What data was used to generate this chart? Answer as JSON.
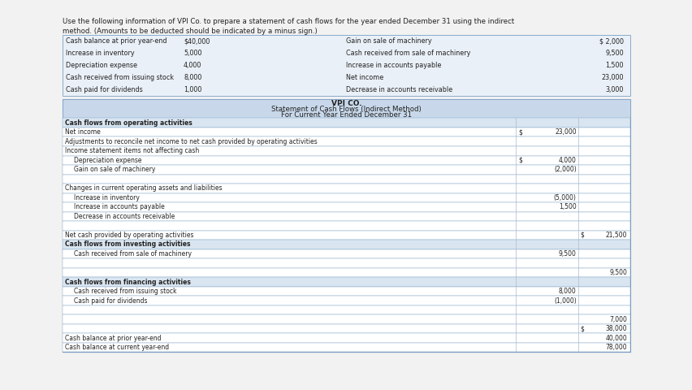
{
  "title1": "VPI CO.",
  "title2": "Statement of Cash Flows (Indirect Method)",
  "title3": "For Current Year Ended December 31",
  "intro_line1": "Use the following information of VPI Co. to prepare a statement of cash flows for the year ended December 31 using the indirect",
  "intro_line2": "method. (Amounts to be deducted should be indicated by a minus sign.)",
  "given_left": [
    [
      "Cash balance at prior year-end",
      "$40,000"
    ],
    [
      "Increase in inventory",
      "5,000"
    ],
    [
      "Depreciation expense",
      "4,000"
    ],
    [
      "Cash received from issuing stock",
      "8,000"
    ],
    [
      "Cash paid for dividends",
      "1,000"
    ]
  ],
  "given_right": [
    [
      "Gain on sale of machinery",
      "$ 2,000"
    ],
    [
      "Cash received from sale of machinery",
      "9,500"
    ],
    [
      "Increase in accounts payable",
      "1,500"
    ],
    [
      "Net income",
      "23,000"
    ],
    [
      "Decrease in accounts receivable",
      "3,000"
    ]
  ],
  "rows": [
    {
      "label": "Cash flows from operating activities",
      "c1": "",
      "c2": "",
      "section": true,
      "indent": 0
    },
    {
      "label": "Net income",
      "c1": "$",
      "c2": "23,000",
      "section": false,
      "indent": 0,
      "col": 1
    },
    {
      "label": "Adjustments to reconcile net income to net cash provided by operating activities",
      "c1": "",
      "c2": "",
      "section": false,
      "indent": 0
    },
    {
      "label": "Income statement items not affecting cash",
      "c1": "",
      "c2": "",
      "section": false,
      "indent": 0
    },
    {
      "label": "Depreciation expense",
      "c1": "$",
      "c2": "4,000",
      "section": false,
      "indent": 1,
      "col": 1
    },
    {
      "label": "Gain on sale of machinery",
      "c1": "(2,000)",
      "c2": "",
      "section": false,
      "indent": 1,
      "col": 1
    },
    {
      "label": "",
      "c1": "",
      "c2": "",
      "section": false,
      "indent": 0
    },
    {
      "label": "Changes in current operating assets and liabilities",
      "c1": "",
      "c2": "",
      "section": false,
      "indent": 0
    },
    {
      "label": "Increase in inventory",
      "c1": "(5,000)",
      "c2": "",
      "section": false,
      "indent": 1,
      "col": 1
    },
    {
      "label": "Increase in accounts payable",
      "c1": "1,500",
      "c2": "",
      "section": false,
      "indent": 1,
      "col": 1
    },
    {
      "label": "Decrease in accounts receivable",
      "c1": "",
      "c2": "",
      "section": false,
      "indent": 1
    },
    {
      "label": "",
      "c1": "",
      "c2": "",
      "section": false,
      "indent": 0
    },
    {
      "label": "Net cash provided by operating activities",
      "c1": "",
      "c2": "$  21,500",
      "section": false,
      "indent": 0,
      "col": 2
    },
    {
      "label": "Cash flows from investing activities",
      "c1": "",
      "c2": "",
      "section": true,
      "indent": 0
    },
    {
      "label": "Cash received from sale of machinery",
      "c1": "9,500",
      "c2": "",
      "section": false,
      "indent": 1,
      "col": 1
    },
    {
      "label": "",
      "c1": "",
      "c2": "",
      "section": false,
      "indent": 0
    },
    {
      "label": "",
      "c1": "",
      "c2": "9,500",
      "section": false,
      "indent": 0,
      "col": 2
    },
    {
      "label": "Cash flows from financing activities",
      "c1": "",
      "c2": "",
      "section": true,
      "indent": 0
    },
    {
      "label": "Cash received from issuing stock",
      "c1": "8,000",
      "c2": "",
      "section": false,
      "indent": 1,
      "col": 1
    },
    {
      "label": "Cash paid for dividends",
      "c1": "(1,000)",
      "c2": "",
      "section": false,
      "indent": 1,
      "col": 1
    },
    {
      "label": "",
      "c1": "",
      "c2": "",
      "section": false,
      "indent": 0
    },
    {
      "label": "",
      "c1": "",
      "c2": "7,000",
      "section": false,
      "indent": 0,
      "col": 2
    },
    {
      "label": "",
      "c1": "",
      "c2": "$  38,000",
      "section": false,
      "indent": 0,
      "col": 2
    },
    {
      "label": "Cash balance at prior year-end",
      "c1": "",
      "c2": "40,000",
      "section": false,
      "indent": 0,
      "col": 2
    },
    {
      "label": "Cash balance at current year-end",
      "c1": "",
      "c2": "78,000",
      "section": false,
      "indent": 0,
      "col": 2
    }
  ],
  "bg_white": "#ffffff",
  "bg_page": "#f2f2f2",
  "bg_header": "#c8d8ea",
  "bg_section": "#d9e5f0",
  "bg_given": "#eaf0f7",
  "border_color": "#7a9fc5",
  "text_color": "#222222"
}
